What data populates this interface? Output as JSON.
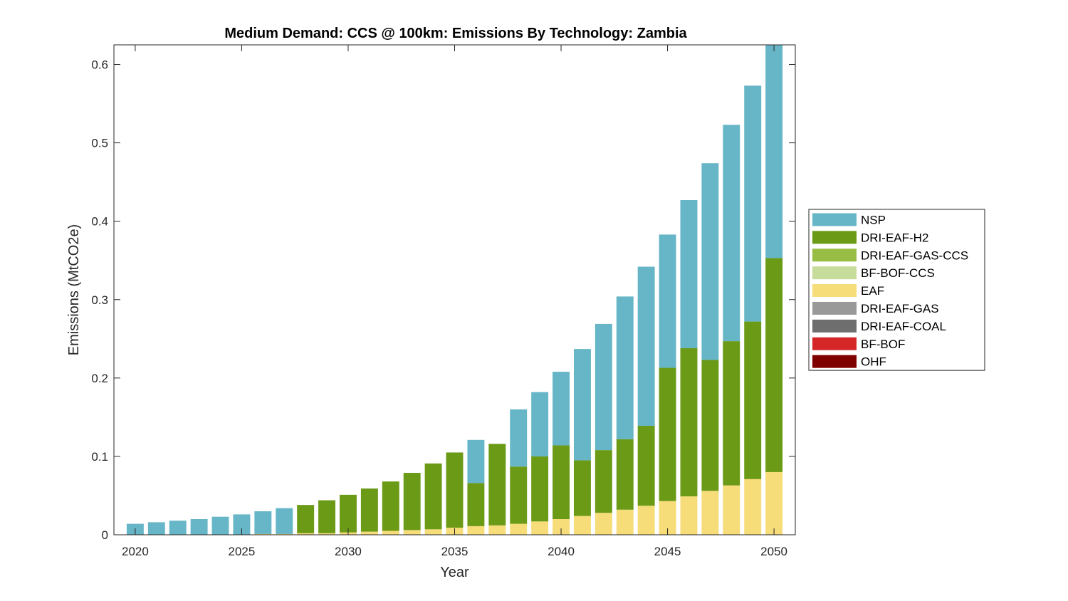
{
  "chart_data": {
    "type": "bar",
    "stacked": true,
    "title": "Medium Demand: CCS @ 100km: Emissions By Technology: Zambia",
    "xlabel": "Year",
    "ylabel": "Emissions (MtCO2e)",
    "xlim": [
      2019,
      2051
    ],
    "ylim": [
      0,
      0.625
    ],
    "xticks": [
      "2020",
      "2025",
      "2030",
      "2035",
      "2040",
      "2045",
      "2050"
    ],
    "yticks": [
      "0",
      "0.1",
      "0.2",
      "0.3",
      "0.4",
      "0.5",
      "0.6"
    ],
    "grid": false,
    "legend_position": "east-outside",
    "categories": [
      2020,
      2021,
      2022,
      2023,
      2024,
      2025,
      2026,
      2027,
      2028,
      2029,
      2030,
      2031,
      2032,
      2033,
      2034,
      2035,
      2036,
      2037,
      2038,
      2039,
      2040,
      2041,
      2042,
      2043,
      2044,
      2045,
      2046,
      2047,
      2048,
      2049,
      2050
    ],
    "series": [
      {
        "name": "OHF",
        "color": "#7f0000",
        "values": [
          0,
          0,
          0,
          0,
          0,
          0,
          0,
          0,
          0,
          0,
          0,
          0,
          0,
          0,
          0,
          0,
          0,
          0,
          0,
          0,
          0,
          0,
          0,
          0,
          0,
          0,
          0,
          0,
          0,
          0,
          0
        ]
      },
      {
        "name": "BF-BOF",
        "color": "#d62728",
        "values": [
          0,
          0,
          0,
          0,
          0,
          0,
          0,
          0,
          0,
          0,
          0,
          0,
          0,
          0,
          0,
          0,
          0,
          0,
          0,
          0,
          0,
          0,
          0,
          0,
          0,
          0,
          0,
          0,
          0,
          0,
          0
        ]
      },
      {
        "name": "DRI-EAF-COAL",
        "color": "#6e6e6e",
        "values": [
          0,
          0,
          0,
          0,
          0,
          0,
          0,
          0,
          0,
          0,
          0,
          0,
          0,
          0,
          0,
          0,
          0,
          0,
          0,
          0,
          0,
          0,
          0,
          0,
          0,
          0,
          0,
          0,
          0,
          0,
          0
        ]
      },
      {
        "name": "DRI-EAF-GAS",
        "color": "#999999",
        "values": [
          0,
          0,
          0,
          0,
          0,
          0,
          0,
          0,
          0,
          0,
          0,
          0,
          0,
          0,
          0,
          0,
          0,
          0,
          0,
          0,
          0,
          0,
          0,
          0,
          0,
          0,
          0,
          0,
          0,
          0,
          0
        ]
      },
      {
        "name": "EAF",
        "color": "#f7dc7a",
        "values": [
          0,
          0,
          0,
          0,
          0,
          0,
          0.001,
          0.001,
          0.002,
          0.002,
          0.003,
          0.004,
          0.005,
          0.006,
          0.007,
          0.009,
          0.011,
          0.012,
          0.014,
          0.017,
          0.02,
          0.024,
          0.028,
          0.032,
          0.037,
          0.043,
          0.049,
          0.056,
          0.063,
          0.071,
          0.08
        ]
      },
      {
        "name": "BF-BOF-CCS",
        "color": "#c6dc9a",
        "values": [
          0,
          0,
          0,
          0,
          0,
          0,
          0,
          0,
          0,
          0,
          0,
          0,
          0,
          0,
          0,
          0,
          0,
          0,
          0,
          0,
          0,
          0,
          0,
          0,
          0,
          0,
          0,
          0,
          0,
          0,
          0
        ]
      },
      {
        "name": "DRI-EAF-GAS-CCS",
        "color": "#98bd45",
        "values": [
          0,
          0,
          0,
          0,
          0,
          0,
          0,
          0,
          0,
          0,
          0,
          0,
          0,
          0,
          0,
          0,
          0,
          0,
          0,
          0,
          0,
          0,
          0,
          0,
          0,
          0,
          0,
          0,
          0,
          0,
          0
        ]
      },
      {
        "name": "DRI-EAF-H2",
        "color": "#6b9a17",
        "values": [
          0,
          0,
          0,
          0,
          0,
          0,
          0,
          0,
          0.036,
          0.042,
          0.048,
          0.055,
          0.063,
          0.073,
          0.084,
          0.096,
          0.055,
          0.104,
          0.073,
          0.083,
          0.094,
          0.071,
          0.08,
          0.09,
          0.102,
          0.17,
          0.189,
          0.167,
          0.184,
          0.201,
          0.273
        ]
      },
      {
        "name": "NSP",
        "color": "#67b6c7",
        "values": [
          0.014,
          0.016,
          0.018,
          0.02,
          0.023,
          0.026,
          0.029,
          0.033,
          0,
          0,
          0,
          0,
          0,
          0,
          0,
          0,
          0.055,
          0,
          0.073,
          0.082,
          0.094,
          0.142,
          0.161,
          0.182,
          0.203,
          0.17,
          0.189,
          0.251,
          0.276,
          0.301,
          0.275
        ]
      }
    ],
    "legend_order": [
      "NSP",
      "DRI-EAF-H2",
      "DRI-EAF-GAS-CCS",
      "BF-BOF-CCS",
      "EAF",
      "DRI-EAF-GAS",
      "DRI-EAF-COAL",
      "BF-BOF",
      "OHF"
    ]
  }
}
